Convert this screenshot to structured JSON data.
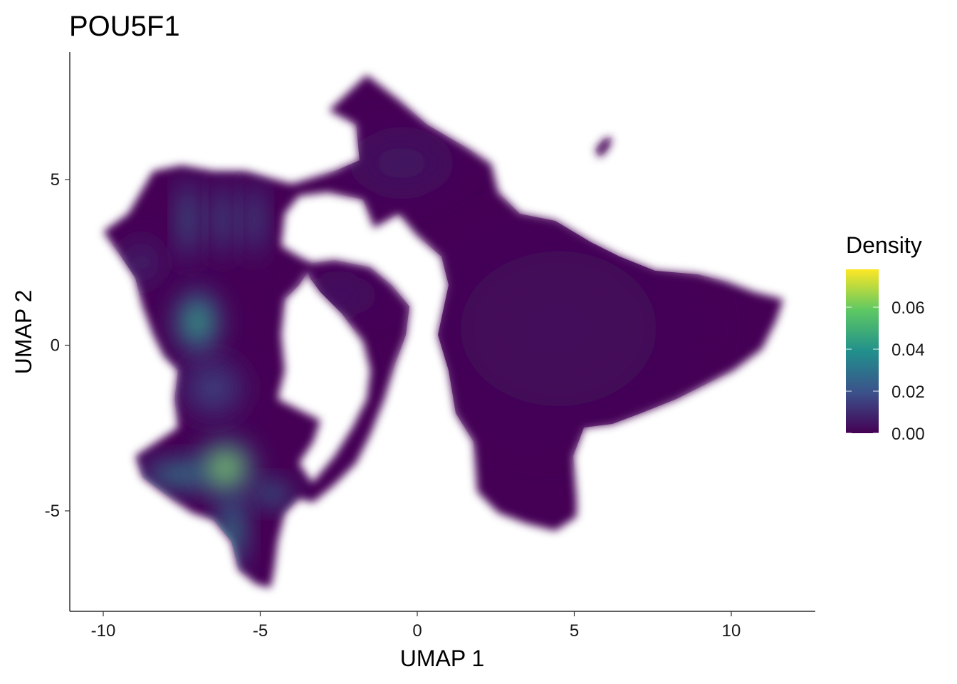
{
  "chart_data": {
    "type": "scatter",
    "title": "POU5F1",
    "xlabel": "UMAP 1",
    "ylabel": "UMAP 2",
    "xlim": [
      -11,
      12.5
    ],
    "ylim": [
      -8,
      8.2
    ],
    "x_ticks": [
      -10,
      -5,
      0,
      5,
      10
    ],
    "x_tick_labels": [
      "-10",
      "-5",
      "0",
      "5",
      "10"
    ],
    "y_ticks": [
      -5,
      0,
      5
    ],
    "y_tick_labels": [
      "-5",
      "0",
      "5"
    ],
    "grid": false,
    "legend": {
      "title": "Density",
      "position": "right",
      "type": "colorbar",
      "range": [
        0,
        0.078
      ],
      "ticks": [
        0.0,
        0.02,
        0.04,
        0.06
      ],
      "tick_labels": [
        "0.00",
        "0.02",
        "0.04",
        "0.06"
      ],
      "colors": [
        "#440154",
        "#3b528b",
        "#21908c",
        "#5dc863",
        "#fde725"
      ]
    },
    "density_clusters": [
      {
        "name": "hotspot-lower-left",
        "x": -6.1,
        "y": -3.7,
        "sx": 0.75,
        "sy": 0.7,
        "peak": 0.078
      },
      {
        "name": "lower-branch",
        "x": -5.9,
        "y": -5.6,
        "sx": 0.35,
        "sy": 1.0,
        "peak": 0.05
      },
      {
        "name": "lower-arm",
        "x": -7.6,
        "y": -3.9,
        "sx": 1.0,
        "sy": 0.35,
        "peak": 0.05
      },
      {
        "name": "lower-right-arm",
        "x": -4.6,
        "y": -4.5,
        "sx": 0.5,
        "sy": 0.3,
        "peak": 0.048
      },
      {
        "name": "upper-left-hotspot",
        "x": -7.0,
        "y": 0.7,
        "sx": 0.6,
        "sy": 0.8,
        "peak": 0.058
      },
      {
        "name": "upper-finger-1",
        "x": -7.3,
        "y": 3.8,
        "sx": 0.25,
        "sy": 1.1,
        "peak": 0.04
      },
      {
        "name": "upper-finger-2",
        "x": -6.2,
        "y": 3.8,
        "sx": 0.25,
        "sy": 1.0,
        "peak": 0.035
      },
      {
        "name": "upper-finger-3",
        "x": -5.2,
        "y": 3.8,
        "sx": 0.25,
        "sy": 1.0,
        "peak": 0.032
      },
      {
        "name": "mid-band",
        "x": -6.5,
        "y": -1.3,
        "sx": 0.9,
        "sy": 0.8,
        "peak": 0.02
      },
      {
        "name": "upper-left-arm",
        "x": -8.8,
        "y": 2.5,
        "sx": 0.6,
        "sy": 0.6,
        "peak": 0.012
      },
      {
        "name": "right-large-region",
        "x": 4.5,
        "y": 0.5,
        "sx": 4.0,
        "sy": 3.0,
        "peak": 0.003
      },
      {
        "name": "top-region",
        "x": -0.5,
        "y": 5.5,
        "sx": 1.6,
        "sy": 1.0,
        "peak": 0.006
      },
      {
        "name": "middle-arm",
        "x": -2.5,
        "y": 1.5,
        "sx": 1.2,
        "sy": 0.6,
        "peak": 0.006
      },
      {
        "name": "small-island",
        "x": 5.8,
        "y": 6.1,
        "sx": 0.2,
        "sy": 0.15,
        "peak": 0.002
      }
    ]
  }
}
